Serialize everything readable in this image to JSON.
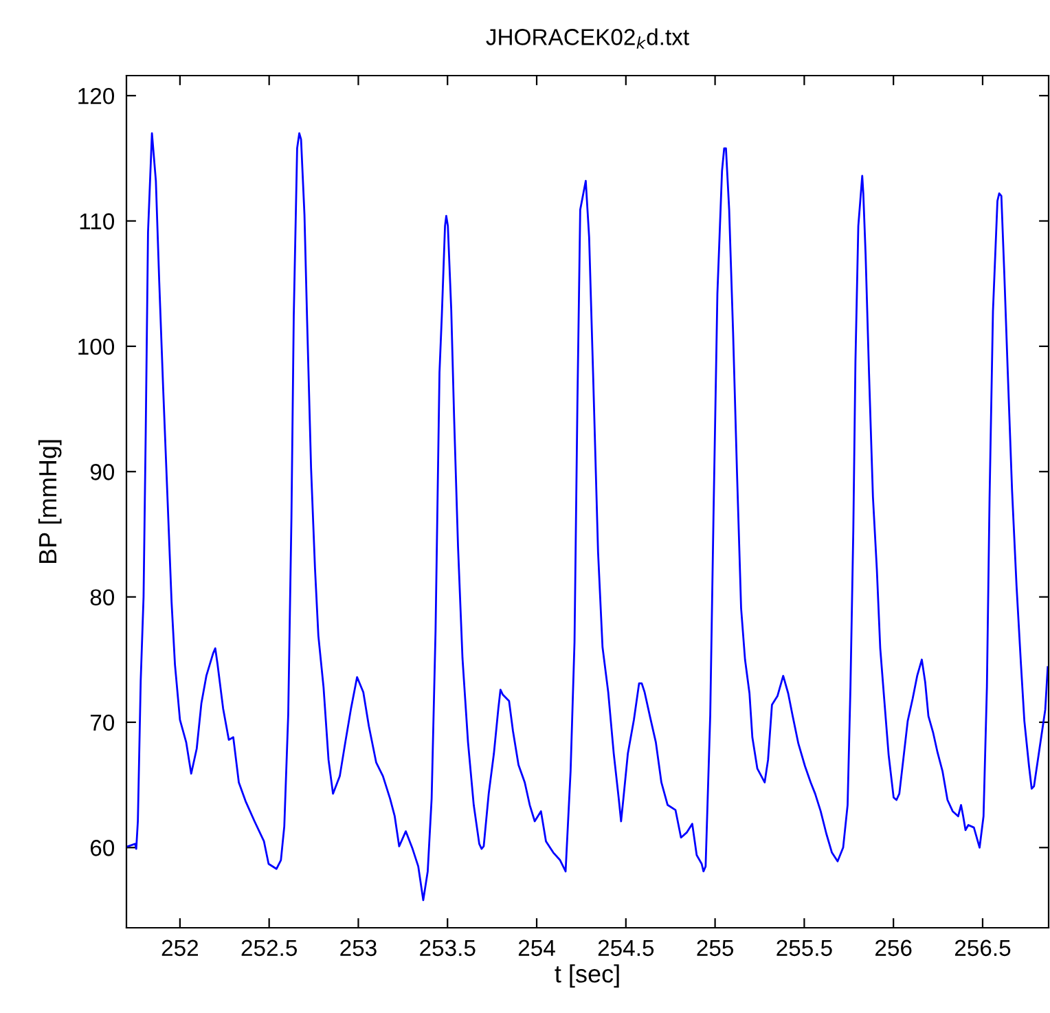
{
  "chart_data": {
    "type": "line",
    "title": "JHORACEK02$_{k}$d.txt",
    "xlabel": "t [sec]",
    "ylabel": "BP [mmHg]",
    "xlim": [
      251.7,
      256.87
    ],
    "ylim": [
      53.6,
      121.6
    ],
    "xticks": [
      252,
      252.5,
      253,
      253.5,
      254,
      254.5,
      255,
      255.5,
      256,
      256.5
    ],
    "yticks": [
      60,
      70,
      80,
      90,
      100,
      110,
      120
    ],
    "series": [
      {
        "color": "#0000ff",
        "x": [
          251.708,
          251.749,
          251.755,
          251.764,
          251.78,
          251.796,
          251.808,
          251.821,
          251.843,
          251.865,
          251.884,
          251.906,
          251.931,
          251.953,
          251.972,
          252.0,
          252.035,
          252.063,
          252.094,
          252.12,
          252.148,
          252.186,
          252.198,
          252.211,
          252.242,
          252.274,
          252.299,
          252.33,
          252.368,
          252.418,
          252.471,
          252.497,
          252.541,
          252.566,
          252.585,
          252.607,
          252.625,
          252.638,
          252.657,
          252.669,
          252.679,
          252.698,
          252.713,
          252.735,
          252.757,
          252.776,
          252.805,
          252.833,
          252.858,
          252.896,
          252.927,
          252.959,
          252.993,
          253.028,
          253.059,
          253.1,
          253.138,
          253.178,
          253.204,
          253.229,
          253.266,
          253.304,
          253.336,
          253.364,
          253.389,
          253.411,
          253.433,
          253.455,
          253.468,
          253.486,
          253.493,
          253.502,
          253.521,
          253.537,
          253.559,
          253.584,
          253.615,
          253.647,
          253.678,
          253.691,
          253.703,
          253.731,
          253.76,
          253.785,
          253.797,
          253.81,
          253.845,
          253.867,
          253.898,
          253.933,
          253.961,
          253.989,
          254.024,
          254.052,
          254.093,
          254.131,
          254.162,
          254.19,
          254.212,
          254.228,
          254.244,
          254.275,
          254.294,
          254.316,
          254.344,
          254.369,
          254.401,
          254.432,
          254.46,
          254.473,
          254.486,
          254.511,
          254.545,
          254.574,
          254.589,
          254.605,
          254.636,
          254.668,
          254.699,
          254.734,
          254.778,
          254.809,
          254.841,
          254.872,
          254.897,
          254.925,
          254.935,
          254.947,
          254.973,
          254.991,
          255.013,
          255.039,
          255.051,
          255.061,
          255.079,
          255.101,
          255.123,
          255.146,
          255.168,
          255.193,
          255.209,
          255.237,
          255.278,
          255.297,
          255.319,
          255.35,
          255.382,
          255.41,
          255.435,
          255.467,
          255.504,
          255.536,
          255.561,
          255.592,
          255.624,
          255.655,
          255.687,
          255.718,
          255.743,
          255.759,
          255.775,
          255.787,
          255.803,
          255.819,
          255.825,
          255.831,
          255.844,
          255.863,
          255.885,
          255.907,
          255.926,
          255.948,
          255.973,
          256.001,
          256.017,
          256.033,
          256.055,
          256.08,
          256.108,
          256.133,
          256.159,
          256.178,
          256.196,
          256.222,
          256.247,
          256.275,
          256.303,
          256.332,
          256.363,
          256.379,
          256.391,
          256.404,
          256.42,
          256.451,
          256.483,
          256.505,
          256.524,
          256.539,
          256.558,
          256.583,
          256.593,
          256.605,
          256.621,
          256.64,
          256.665,
          256.69,
          256.715,
          256.734,
          256.76,
          256.775,
          256.788,
          256.819,
          256.851,
          256.865
        ],
        "values": [
          60.1,
          60.3,
          59.9,
          62.1,
          73.3,
          80.0,
          93.0,
          109.1,
          117.0,
          113.2,
          105.1,
          96.6,
          87.6,
          79.6,
          74.6,
          70.2,
          68.4,
          65.9,
          67.9,
          71.5,
          73.7,
          75.5,
          75.9,
          74.6,
          71.1,
          68.6,
          68.8,
          65.2,
          63.7,
          62.1,
          60.5,
          58.7,
          58.3,
          59.0,
          61.7,
          70.6,
          86.3,
          102.4,
          115.8,
          117.0,
          116.5,
          110.5,
          102.0,
          90.3,
          82.3,
          76.9,
          72.8,
          67.0,
          64.3,
          65.7,
          68.4,
          71.1,
          73.6,
          72.4,
          69.7,
          66.8,
          65.7,
          63.9,
          62.5,
          60.1,
          61.3,
          59.9,
          58.5,
          55.8,
          58.1,
          63.9,
          77.3,
          97.9,
          102.4,
          109.6,
          110.4,
          109.6,
          102.9,
          94.3,
          84.0,
          75.1,
          68.4,
          63.4,
          60.3,
          59.9,
          60.1,
          64.3,
          67.5,
          71.1,
          72.6,
          72.2,
          71.7,
          69.3,
          66.6,
          65.2,
          63.4,
          62.1,
          62.9,
          60.5,
          59.6,
          59.0,
          58.1,
          66.1,
          76.4,
          95.2,
          110.9,
          113.2,
          108.7,
          97.9,
          83.6,
          76.0,
          72.4,
          67.5,
          63.9,
          62.1,
          63.9,
          67.5,
          70.2,
          73.1,
          73.1,
          72.4,
          70.4,
          68.4,
          65.2,
          63.4,
          63.0,
          60.8,
          61.2,
          61.9,
          59.4,
          58.7,
          58.1,
          58.5,
          70.6,
          86.3,
          104.2,
          114.0,
          115.8,
          115.8,
          110.9,
          101.1,
          89.9,
          79.1,
          75.0,
          72.3,
          68.8,
          66.3,
          65.2,
          67.0,
          71.4,
          72.1,
          73.7,
          72.3,
          70.5,
          68.3,
          66.5,
          65.2,
          64.3,
          62.9,
          61.1,
          59.6,
          58.9,
          60.0,
          63.4,
          72.8,
          85.3,
          98.8,
          109.6,
          112.5,
          113.6,
          112.2,
          107.3,
          97.9,
          88.0,
          82.2,
          75.9,
          71.9,
          67.4,
          64.0,
          63.8,
          64.3,
          67.0,
          70.1,
          71.9,
          73.7,
          75.0,
          73.2,
          70.5,
          69.2,
          67.6,
          66.1,
          63.8,
          62.9,
          62.5,
          63.4,
          62.5,
          61.4,
          61.8,
          61.6,
          60.0,
          62.5,
          72.8,
          88.0,
          102.8,
          111.6,
          112.2,
          112.0,
          106.0,
          98.3,
          88.5,
          80.9,
          74.6,
          70.1,
          66.5,
          64.7,
          64.9,
          67.9,
          71.0,
          74.4
        ]
      }
    ]
  }
}
